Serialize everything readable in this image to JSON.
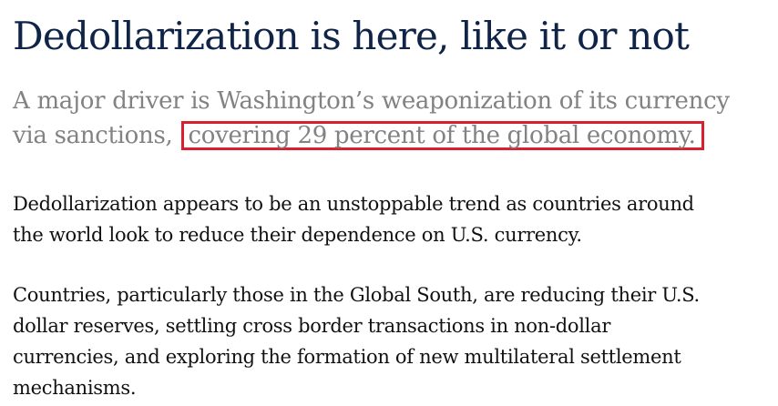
{
  "article": {
    "headline": "Dedollarization is here, like it or not",
    "subhead": {
      "line1": "A major driver is Washington’s weaponization of its currency",
      "line2_prefix": "via sanctions, ",
      "line2_highlight": "covering 29 percent of the global economy."
    },
    "paragraphs": [
      {
        "lines": [
          "Dedollarization appears to be an unstoppable trend as countries around",
          "the world look to reduce their dependence on U.S. currency."
        ]
      },
      {
        "lines": [
          "Countries, particularly those in the Global South, are reducing their U.S.",
          "dollar reserves, settling cross border transactions in non-dollar",
          "currencies, and exploring the formation of new multilateral settlement",
          "mechanisms."
        ]
      }
    ]
  },
  "colors": {
    "headline": "#0f2447",
    "subhead": "#828282",
    "highlight_border": "#d8202f",
    "body_text": "#111111"
  }
}
